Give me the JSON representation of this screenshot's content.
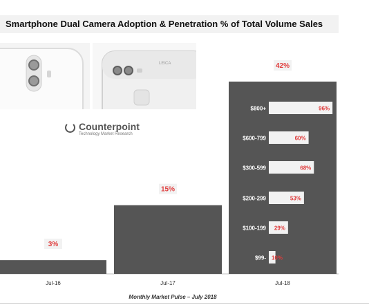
{
  "header": {
    "title": "Smartphone Dual Camera Adoption & Penetration % of Total Volume Sales"
  },
  "logo": {
    "name": "Counterpoint",
    "tagline": "Technology Market Research"
  },
  "phones": {
    "brand_text": "LEICA"
  },
  "footer": {
    "text": "Monthly Market Pulse – July 2018"
  },
  "colors": {
    "bar": "#555555",
    "label_red": "#e03c3c",
    "label_bg": "#f2f2f2",
    "axis": "#bfbfbf",
    "segment_bar": "#f2f2f2"
  },
  "chart_data": [
    {
      "type": "bar",
      "categories": [
        "Jul-16",
        "Jul-17",
        "Jul-18"
      ],
      "values": [
        3,
        15,
        42
      ],
      "data_labels": [
        "3%",
        "15%",
        "42%"
      ],
      "ylim": [
        0,
        50
      ],
      "grid": false
    },
    {
      "type": "bar",
      "orientation": "horizontal",
      "categories": [
        "$800+",
        "$600-799",
        "$300-599",
        "$200-299",
        "$100-199",
        "$99-"
      ],
      "values": [
        96,
        60,
        68,
        53,
        29,
        10
      ],
      "data_labels": [
        "96%",
        "60%",
        "68%",
        "53%",
        "29%",
        "10%"
      ],
      "xlim": [
        0,
        100
      ]
    }
  ]
}
